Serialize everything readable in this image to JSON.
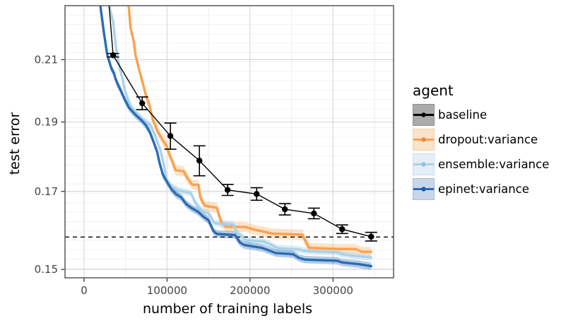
{
  "legend": {
    "title": "agent",
    "entries": [
      {
        "label": "baseline",
        "line": "#000000",
        "dot": "#000000",
        "fill": "#ababab",
        "border": "#8f8f8f"
      },
      {
        "label": "dropout:variance",
        "line": "#FCA14E",
        "dot": "#f08c2e",
        "fill": "#fae3cb",
        "border": "#f3cda4"
      },
      {
        "label": "ensemble:variance",
        "line": "#A9D2E8",
        "dot": "#8fc2de",
        "fill": "#e4eef6",
        "border": "#c4dcec"
      },
      {
        "label": "epinet:variance",
        "line": "#2A6CB5",
        "dot": "#1d5a9e",
        "fill": "#c9d6e8",
        "border": "#a9bcd6"
      }
    ]
  },
  "chart_data": {
    "type": "line",
    "title": "",
    "xlabel": "number of training labels",
    "ylabel": "test error",
    "log_y": true,
    "x_range": [
      -23000,
      373000
    ],
    "y_range": [
      0.148,
      0.229
    ],
    "x_ticks": [
      {
        "v": 0,
        "label": "0"
      },
      {
        "v": 100000,
        "label": "100000"
      },
      {
        "v": 200000,
        "label": "200000"
      },
      {
        "v": 300000,
        "label": "300000"
      }
    ],
    "x_minor_ticks": [
      50000,
      150000,
      250000,
      350000
    ],
    "y_ticks": [
      {
        "v": 0.15,
        "label": "0.15"
      },
      {
        "v": 0.17,
        "label": "0.17"
      },
      {
        "v": 0.19,
        "label": "0.19"
      },
      {
        "v": 0.21,
        "label": "0.21"
      }
    ],
    "hline": {
      "y": 0.158,
      "style": "dashed",
      "color": "#000000"
    },
    "baseline": {
      "name": "baseline",
      "color": "#000000",
      "points": [
        {
          "x": 26000,
          "y": 0.245,
          "e": 0
        },
        {
          "x": 35000,
          "y": 0.2115,
          "e": 0.0006
        },
        {
          "x": 70000,
          "y": 0.1958,
          "e": 0.002
        },
        {
          "x": 104000,
          "y": 0.1858,
          "e": 0.0039
        },
        {
          "x": 139000,
          "y": 0.1786,
          "e": 0.0043
        },
        {
          "x": 173000,
          "y": 0.1704,
          "e": 0.0015
        },
        {
          "x": 208000,
          "y": 0.1693,
          "e": 0.0017
        },
        {
          "x": 242000,
          "y": 0.1652,
          "e": 0.0015
        },
        {
          "x": 277000,
          "y": 0.1641,
          "e": 0.0014
        },
        {
          "x": 311000,
          "y": 0.16,
          "e": 0.0011
        },
        {
          "x": 346000,
          "y": 0.1581,
          "e": 0.0011
        }
      ]
    },
    "series": [
      {
        "name": "dropout:variance",
        "color": "#FCA14E",
        "ribbon": "rgba(252,161,78,0.30)",
        "ribbon_pct": 0.008,
        "points": [
          [
            48000,
            0.24
          ],
          [
            54000,
            0.228
          ],
          [
            56000,
            0.221
          ],
          [
            60000,
            0.216
          ],
          [
            62000,
            0.2115
          ],
          [
            66000,
            0.207
          ],
          [
            69000,
            0.204
          ],
          [
            75000,
            0.1979
          ],
          [
            79000,
            0.195
          ],
          [
            83000,
            0.1906
          ],
          [
            89000,
            0.187
          ],
          [
            94000,
            0.1849
          ],
          [
            100000,
            0.1826
          ],
          [
            103000,
            0.1802
          ],
          [
            107000,
            0.1781
          ],
          [
            110000,
            0.1759
          ],
          [
            120000,
            0.1756
          ],
          [
            123000,
            0.1742
          ],
          [
            129000,
            0.1722
          ],
          [
            131000,
            0.1718
          ],
          [
            138000,
            0.1718
          ],
          [
            140000,
            0.1684
          ],
          [
            144000,
            0.1667
          ],
          [
            146000,
            0.1661
          ],
          [
            160000,
            0.1656
          ],
          [
            165000,
            0.1619
          ],
          [
            171000,
            0.1606
          ],
          [
            194000,
            0.1606
          ],
          [
            205000,
            0.1599
          ],
          [
            220000,
            0.1592
          ],
          [
            226000,
            0.1589
          ],
          [
            263000,
            0.1586
          ],
          [
            271000,
            0.1553
          ],
          [
            307000,
            0.155
          ],
          [
            327000,
            0.155
          ],
          [
            335000,
            0.1543
          ],
          [
            346000,
            0.1543
          ]
        ]
      },
      {
        "name": "ensemble:variance",
        "color": "#A9D2E8",
        "ribbon": "rgba(169,210,232,0.40)",
        "ribbon_pct": 0.0055,
        "points": [
          [
            27000,
            0.24
          ],
          [
            31000,
            0.228
          ],
          [
            35000,
            0.223
          ],
          [
            39000,
            0.213
          ],
          [
            43000,
            0.207
          ],
          [
            46000,
            0.204
          ],
          [
            49000,
            0.2
          ],
          [
            53000,
            0.197
          ],
          [
            57000,
            0.1945
          ],
          [
            63000,
            0.1928
          ],
          [
            69000,
            0.1912
          ],
          [
            75000,
            0.19
          ],
          [
            80000,
            0.1891
          ],
          [
            86000,
            0.1857
          ],
          [
            92000,
            0.1816
          ],
          [
            96000,
            0.1775
          ],
          [
            98000,
            0.1752
          ],
          [
            100000,
            0.1728
          ],
          [
            106000,
            0.1713
          ],
          [
            114000,
            0.1703
          ],
          [
            122000,
            0.1699
          ],
          [
            129000,
            0.1695
          ],
          [
            133000,
            0.1674
          ],
          [
            137000,
            0.166
          ],
          [
            143000,
            0.1647
          ],
          [
            150000,
            0.1641
          ],
          [
            157000,
            0.1616
          ],
          [
            163000,
            0.1614
          ],
          [
            180000,
            0.1612
          ],
          [
            184000,
            0.1592
          ],
          [
            191000,
            0.158
          ],
          [
            195000,
            0.1572
          ],
          [
            216000,
            0.1569
          ],
          [
            224000,
            0.1562
          ],
          [
            233000,
            0.1552
          ],
          [
            259000,
            0.1549
          ],
          [
            266000,
            0.1545
          ],
          [
            305000,
            0.1542
          ],
          [
            311000,
            0.1537
          ],
          [
            330000,
            0.1532
          ],
          [
            346000,
            0.1529
          ]
        ]
      },
      {
        "name": "epinet:variance",
        "color": "#2A6CB5",
        "ribbon": "rgba(42,108,181,0.35)",
        "ribbon_pct": 0.006,
        "points": [
          [
            16000,
            0.24
          ],
          [
            20000,
            0.228
          ],
          [
            24000,
            0.219
          ],
          [
            28000,
            0.2115
          ],
          [
            33000,
            0.207
          ],
          [
            36000,
            0.2055
          ],
          [
            38000,
            0.2035
          ],
          [
            42000,
            0.201
          ],
          [
            44000,
            0.2
          ],
          [
            49000,
            0.197
          ],
          [
            54000,
            0.1945
          ],
          [
            62000,
            0.1922
          ],
          [
            69000,
            0.1906
          ],
          [
            74000,
            0.1892
          ],
          [
            79000,
            0.1871
          ],
          [
            84000,
            0.1839
          ],
          [
            88000,
            0.1812
          ],
          [
            91000,
            0.1779
          ],
          [
            95000,
            0.1746
          ],
          [
            100000,
            0.1726
          ],
          [
            105000,
            0.1707
          ],
          [
            111000,
            0.1692
          ],
          [
            117000,
            0.1684
          ],
          [
            123000,
            0.1666
          ],
          [
            129000,
            0.1656
          ],
          [
            137000,
            0.1646
          ],
          [
            143000,
            0.1634
          ],
          [
            150000,
            0.1623
          ],
          [
            156000,
            0.1595
          ],
          [
            160000,
            0.1588
          ],
          [
            182000,
            0.1585
          ],
          [
            188000,
            0.1566
          ],
          [
            193000,
            0.156
          ],
          [
            214000,
            0.1553
          ],
          [
            222000,
            0.1547
          ],
          [
            231000,
            0.154
          ],
          [
            252000,
            0.1537
          ],
          [
            259000,
            0.1528
          ],
          [
            266000,
            0.1524
          ],
          [
            305000,
            0.1521
          ],
          [
            311000,
            0.1517
          ],
          [
            330000,
            0.1513
          ],
          [
            346000,
            0.1508
          ]
        ]
      }
    ]
  }
}
